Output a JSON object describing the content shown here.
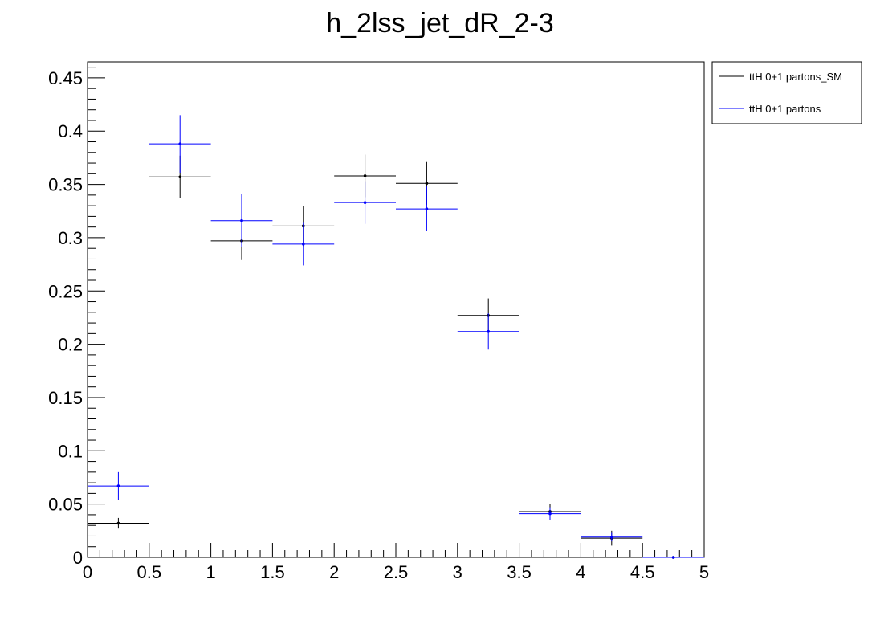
{
  "chart_data": {
    "type": "scatter",
    "title": "h_2lss_jet_dR_2-3",
    "xlabel": "",
    "ylabel": "",
    "xlim": [
      0,
      5
    ],
    "ylim": [
      0,
      0.465
    ],
    "x_ticks": [
      0,
      0.5,
      1,
      1.5,
      2,
      2.5,
      3,
      3.5,
      4,
      4.5,
      5
    ],
    "x_tick_labels": [
      "0",
      "0.5",
      "1",
      "1.5",
      "2",
      "2.5",
      "3",
      "3.5",
      "4",
      "4.5",
      "5"
    ],
    "y_ticks": [
      0,
      0.05,
      0.1,
      0.15,
      0.2,
      0.25,
      0.3,
      0.35,
      0.4,
      0.45
    ],
    "y_tick_labels": [
      "0",
      "0.05",
      "0.1",
      "0.15",
      "0.2",
      "0.25",
      "0.3",
      "0.35",
      "0.4",
      "0.45"
    ],
    "bin_width": 0.5,
    "x": [
      0.25,
      0.75,
      1.25,
      1.75,
      2.25,
      2.75,
      3.25,
      3.75,
      4.25,
      4.75
    ],
    "legend_position": "top-right",
    "grid": false,
    "series": [
      {
        "name": "ttH 0+1 partons_SM",
        "color": "#000000",
        "values": [
          0.032,
          0.357,
          0.297,
          0.311,
          0.358,
          0.351,
          0.227,
          0.043,
          0.018,
          0.0
        ],
        "errors": [
          0.005,
          0.02,
          0.018,
          0.019,
          0.02,
          0.02,
          0.016,
          0.007,
          0.007,
          0.001
        ]
      },
      {
        "name": "ttH 0+1 partons",
        "color": "#0000ff",
        "values": [
          0.067,
          0.388,
          0.316,
          0.294,
          0.333,
          0.327,
          0.212,
          0.041,
          0.019,
          0.0
        ],
        "errors": [
          0.013,
          0.027,
          0.025,
          0.02,
          0.02,
          0.021,
          0.017,
          0.006,
          0.004,
          0.001
        ]
      }
    ]
  }
}
